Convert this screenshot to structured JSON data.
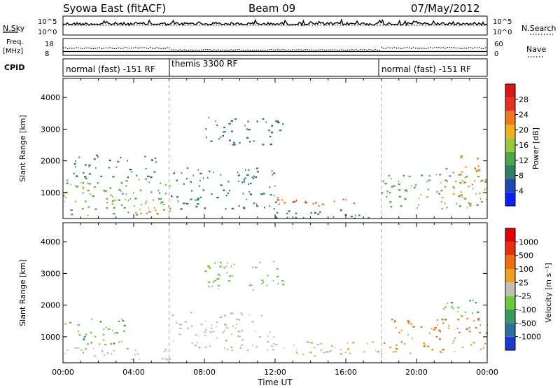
{
  "header": {
    "station": "Syowa East (fitACF)",
    "beam": "Beam 09",
    "date": "07/May/2012"
  },
  "top_panels": {
    "nsky_label": "N.Sky",
    "nsearch_label": "N.Search",
    "nsky_ticks": [
      "10^5",
      "10^0"
    ],
    "nsearch_ticks": [
      "10^5",
      "10^0"
    ],
    "freq_label_1": "Freq.",
    "freq_label_2": "[MHz]",
    "freq_ticks": [
      "18",
      "8"
    ],
    "nave_label": "Nave",
    "nave_ticks": [
      "60",
      "0"
    ],
    "cpid_label": "CPID",
    "cpid_segments": [
      {
        "label": "normal (fast) -151 RF",
        "start_hour": 0,
        "end_hour": 6
      },
      {
        "label": "themis 3300 RF",
        "start_hour": 6,
        "end_hour": 18
      },
      {
        "label": "normal (fast) -151 RF",
        "start_hour": 18,
        "end_hour": 24
      }
    ]
  },
  "chart_data": [
    {
      "type": "heatmap",
      "title": "",
      "xlabel": "Time UT",
      "ylabel": "Slant Range [km]",
      "xlim_hours": [
        0,
        24
      ],
      "ylim": [
        180,
        4600
      ],
      "x_ticks": [
        "00:00",
        "04:00",
        "08:00",
        "12:00",
        "16:00",
        "20:00",
        "00:00"
      ],
      "y_ticks": [
        1000,
        2000,
        3000,
        4000
      ],
      "colorbar_label": "Power [dB]",
      "colorbar_ticks": [
        "4",
        "8",
        "12",
        "16",
        "20",
        "24",
        "28"
      ],
      "colorbar_colors": [
        "#0a1fff",
        "#1d4ab0",
        "#2f7f6a",
        "#4fa54a",
        "#9bc83a",
        "#f0b020",
        "#f07820",
        "#e83020",
        "#d81818"
      ],
      "value_range": [
        0,
        30
      ],
      "echo_regions": [
        {
          "t0": 0.0,
          "t1": 6.0,
          "r0": 300,
          "r1": 1500,
          "level": 12
        },
        {
          "t0": 0.0,
          "t1": 1.2,
          "r0": 700,
          "r1": 1300,
          "level": 20
        },
        {
          "t0": 0.5,
          "t1": 5.5,
          "r0": 1500,
          "r1": 2200,
          "level": 8
        },
        {
          "t0": 4.0,
          "t1": 6.0,
          "r0": 300,
          "r1": 700,
          "level": 20
        },
        {
          "t0": 6.0,
          "t1": 12.0,
          "r0": 500,
          "r1": 1800,
          "level": 8
        },
        {
          "t0": 8.0,
          "t1": 12.5,
          "r0": 2500,
          "r1": 3400,
          "level": 8
        },
        {
          "t0": 12.0,
          "t1": 16.5,
          "r0": 600,
          "r1": 900,
          "level": 22
        },
        {
          "t0": 13.0,
          "t1": 15.0,
          "r0": 600,
          "r1": 800,
          "level": 27
        },
        {
          "t0": 12.0,
          "t1": 18.0,
          "r0": 200,
          "r1": 500,
          "level": 8
        },
        {
          "t0": 18.0,
          "t1": 24.0,
          "r0": 500,
          "r1": 1600,
          "level": 12
        },
        {
          "t0": 21.0,
          "t1": 24.0,
          "r0": 800,
          "r1": 1400,
          "level": 20
        },
        {
          "t0": 21.5,
          "t1": 23.5,
          "r0": 1500,
          "r1": 2200,
          "level": 20
        }
      ]
    },
    {
      "type": "heatmap",
      "title": "",
      "xlabel": "Time UT",
      "ylabel": "Slant Range [km]",
      "xlim_hours": [
        0,
        24
      ],
      "ylim": [
        180,
        4600
      ],
      "x_ticks": [
        "00:00",
        "04:00",
        "08:00",
        "12:00",
        "16:00",
        "20:00",
        "00:00"
      ],
      "y_ticks": [
        1000,
        2000,
        3000,
        4000
      ],
      "colorbar_label": "Velocity [m s⁻¹]",
      "colorbar_ticks": [
        "1000",
        "500",
        "100",
        "25",
        "-25",
        "-100",
        "-500",
        "-1000"
      ],
      "colorbar_colors": [
        "#1a3ad0",
        "#2f6fa0",
        "#3a9a5a",
        "#6acb3a",
        "#c0c0b8",
        "#f0a020",
        "#f07010",
        "#e83010",
        "#e00000"
      ],
      "value_range": [
        -1000,
        1000
      ],
      "echo_regions": [
        {
          "t0": 0.0,
          "t1": 3.5,
          "r0": 700,
          "r1": 1600,
          "level": -300
        },
        {
          "t0": 0.0,
          "t1": 6.0,
          "r0": 300,
          "r1": 700,
          "level": 0
        },
        {
          "t0": 6.0,
          "t1": 12.0,
          "r0": 600,
          "r1": 1800,
          "level": 0
        },
        {
          "t0": 8.0,
          "t1": 12.5,
          "r0": 2500,
          "r1": 3400,
          "level": -150
        },
        {
          "t0": 12.0,
          "t1": 18.0,
          "r0": 400,
          "r1": 900,
          "level": 60
        },
        {
          "t0": 18.0,
          "t1": 24.0,
          "r0": 500,
          "r1": 1600,
          "level": 400
        },
        {
          "t0": 21.5,
          "t1": 23.5,
          "r0": 1500,
          "r1": 2200,
          "level": -300
        }
      ]
    }
  ]
}
